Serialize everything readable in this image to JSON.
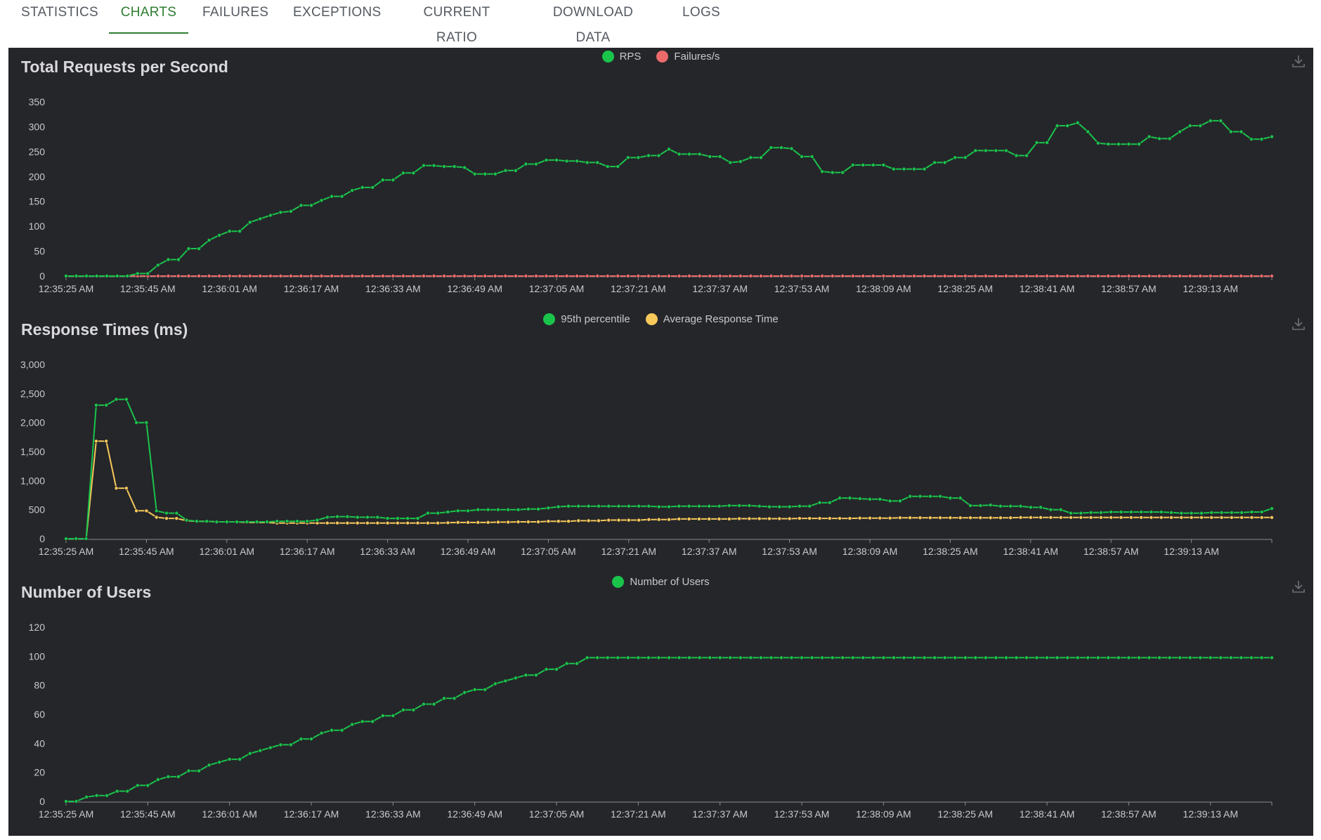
{
  "tabs": [
    {
      "label": "STATISTICS",
      "active": false
    },
    {
      "label": "CHARTS",
      "active": true
    },
    {
      "label": "FAILURES",
      "active": false
    },
    {
      "label": "EXCEPTIONS",
      "active": false
    },
    {
      "label": "CURRENT RATIO",
      "active": false
    },
    {
      "label": "DOWNLOAD DATA",
      "active": false
    },
    {
      "label": "LOGS",
      "active": false
    }
  ],
  "colors": {
    "green": "#19c44b",
    "red": "#ec6a6a",
    "yellow": "#f7c85a",
    "axis": "#8a8a90",
    "text": "#c9c9cc"
  },
  "icons": {
    "download": "download-icon"
  },
  "chart_data": [
    {
      "type": "line",
      "title": "Total Requests per Second",
      "x_tick_labels": [
        "12:35:25 AM",
        "12:35:45 AM",
        "12:36:01 AM",
        "12:36:17 AM",
        "12:36:33 AM",
        "12:36:49 AM",
        "12:37:05 AM",
        "12:37:21 AM",
        "12:37:37 AM",
        "12:37:53 AM",
        "12:38:09 AM",
        "12:38:25 AM",
        "12:38:41 AM",
        "12:38:57 AM",
        "12:39:13 AM"
      ],
      "x_tick_index": [
        0,
        8,
        16,
        24,
        32,
        40,
        48,
        56,
        64,
        72,
        80,
        88,
        96,
        104,
        112
      ],
      "y_ticks": [
        "0",
        "50",
        "100",
        "150",
        "200",
        "250",
        "300",
        "350"
      ],
      "ylim": [
        0,
        350
      ],
      "legend": "top-center",
      "series": [
        {
          "name": "RPS",
          "color": "#19c44b",
          "values": [
            0,
            0,
            0,
            0,
            0,
            0,
            0,
            5,
            5,
            22,
            33,
            33,
            55,
            55,
            72,
            82,
            90,
            90,
            108,
            115,
            122,
            128,
            130,
            142,
            142,
            152,
            160,
            160,
            172,
            178,
            178,
            193,
            193,
            207,
            207,
            222,
            222,
            220,
            220,
            218,
            205,
            205,
            205,
            212,
            212,
            225,
            225,
            233,
            233,
            231,
            231,
            228,
            228,
            220,
            220,
            238,
            238,
            242,
            242,
            255,
            245,
            245,
            245,
            240,
            240,
            228,
            230,
            238,
            238,
            258,
            258,
            256,
            240,
            240,
            210,
            208,
            208,
            223,
            223,
            223,
            223,
            215,
            215,
            215,
            215,
            228,
            228,
            238,
            238,
            252,
            252,
            252,
            252,
            242,
            242,
            268,
            268,
            302,
            302,
            308,
            290,
            267,
            265,
            265,
            265,
            265,
            280,
            276,
            276,
            290,
            302,
            302,
            312,
            312,
            290,
            290,
            275,
            275,
            280
          ]
        },
        {
          "name": "Failures/s",
          "color": "#ec6a6a",
          "values": [
            0,
            0,
            0,
            0,
            0,
            0,
            0,
            0,
            0,
            0,
            0,
            0,
            0,
            0,
            0,
            0,
            0,
            0,
            0,
            0,
            0,
            0,
            0,
            0,
            0,
            0,
            0,
            0,
            0,
            0,
            0,
            0,
            0,
            0,
            0,
            0,
            0,
            0,
            0,
            0,
            0,
            0,
            0,
            0,
            0,
            0,
            0,
            0,
            0,
            0,
            0,
            0,
            0,
            0,
            0,
            0,
            0,
            0,
            0,
            0,
            0,
            0,
            0,
            0,
            0,
            0,
            0,
            0,
            0,
            0,
            0,
            0,
            0,
            0,
            0,
            0,
            0,
            0,
            0,
            0,
            0,
            0,
            0,
            0,
            0,
            0,
            0,
            0,
            0,
            0,
            0,
            0,
            0,
            0,
            0,
            0,
            0,
            0,
            0,
            0,
            0,
            0,
            0,
            0,
            0,
            0,
            0,
            0,
            0,
            0,
            0,
            0,
            0,
            0,
            0,
            0,
            0,
            0,
            0
          ]
        }
      ]
    },
    {
      "type": "line",
      "title": "Response Times (ms)",
      "x_tick_labels": [
        "12:35:25 AM",
        "12:35:45 AM",
        "12:36:01 AM",
        "12:36:17 AM",
        "12:36:33 AM",
        "12:36:49 AM",
        "12:37:05 AM",
        "12:37:21 AM",
        "12:37:37 AM",
        "12:37:53 AM",
        "12:38:09 AM",
        "12:38:25 AM",
        "12:38:41 AM",
        "12:38:57 AM",
        "12:39:13 AM"
      ],
      "x_tick_index": [
        0,
        8,
        16,
        24,
        32,
        40,
        48,
        56,
        64,
        72,
        80,
        88,
        96,
        104,
        112
      ],
      "y_ticks": [
        "0",
        "500",
        "1,000",
        "1,500",
        "2,000",
        "2,500",
        "3,000"
      ],
      "ylim": [
        0,
        3000
      ],
      "legend": "top-center",
      "series": [
        {
          "name": "95th percentile",
          "color": "#19c44b",
          "values": [
            0,
            0,
            0,
            2300,
            2300,
            2400,
            2400,
            2000,
            2000,
            480,
            440,
            440,
            320,
            300,
            300,
            290,
            290,
            290,
            290,
            290,
            290,
            300,
            300,
            300,
            300,
            320,
            370,
            380,
            380,
            370,
            370,
            370,
            350,
            350,
            350,
            350,
            440,
            440,
            460,
            480,
            480,
            500,
            500,
            500,
            500,
            500,
            510,
            510,
            530,
            550,
            560,
            560,
            560,
            560,
            560,
            560,
            560,
            560,
            560,
            550,
            550,
            560,
            560,
            560,
            560,
            560,
            570,
            570,
            570,
            560,
            550,
            550,
            550,
            560,
            560,
            620,
            620,
            700,
            700,
            690,
            680,
            680,
            650,
            650,
            730,
            730,
            730,
            730,
            700,
            700,
            570,
            570,
            580,
            560,
            560,
            560,
            540,
            540,
            500,
            500,
            440,
            440,
            450,
            450,
            460,
            460,
            460,
            460,
            460,
            460,
            450,
            440,
            440,
            440,
            450,
            450,
            450,
            450,
            460,
            460,
            520
          ]
        },
        {
          "name": "Average Response Time",
          "color": "#f7c85a",
          "values": [
            0,
            0,
            0,
            1680,
            1680,
            870,
            870,
            480,
            480,
            370,
            350,
            350,
            310,
            300,
            300,
            290,
            290,
            290,
            280,
            280,
            280,
            270,
            270,
            270,
            270,
            270,
            270,
            270,
            270,
            270,
            270,
            270,
            270,
            270,
            270,
            270,
            270,
            270,
            275,
            280,
            280,
            280,
            280,
            285,
            285,
            290,
            290,
            290,
            300,
            300,
            300,
            310,
            310,
            310,
            320,
            320,
            320,
            320,
            330,
            330,
            330,
            340,
            340,
            340,
            340,
            340,
            340,
            345,
            345,
            345,
            345,
            345,
            345,
            350,
            350,
            350,
            350,
            350,
            350,
            355,
            355,
            355,
            355,
            360,
            360,
            360,
            360,
            360,
            360,
            360,
            360,
            360,
            360,
            360,
            360,
            365,
            365,
            365,
            365,
            365,
            365,
            365,
            365,
            365,
            365,
            365,
            365,
            365,
            365,
            365,
            365,
            365,
            365,
            365,
            365,
            365,
            365,
            365,
            365,
            365,
            365
          ]
        }
      ]
    },
    {
      "type": "line",
      "title": "Number of Users",
      "x_tick_labels": [
        "12:35:25 AM",
        "12:35:45 AM",
        "12:36:01 AM",
        "12:36:17 AM",
        "12:36:33 AM",
        "12:36:49 AM",
        "12:37:05 AM",
        "12:37:21 AM",
        "12:37:37 AM",
        "12:37:53 AM",
        "12:38:09 AM",
        "12:38:25 AM",
        "12:38:41 AM",
        "12:38:57 AM",
        "12:39:13 AM"
      ],
      "x_tick_index": [
        0,
        8,
        16,
        24,
        32,
        40,
        48,
        56,
        64,
        72,
        80,
        88,
        96,
        104,
        112
      ],
      "y_ticks": [
        "0",
        "20",
        "40",
        "60",
        "80",
        "100",
        "120"
      ],
      "ylim": [
        0,
        120
      ],
      "legend": "top-center",
      "series": [
        {
          "name": "Number of Users",
          "color": "#19c44b",
          "values": [
            0,
            0,
            3,
            4,
            4,
            7,
            7,
            11,
            11,
            15,
            17,
            17,
            21,
            21,
            25,
            27,
            29,
            29,
            33,
            35,
            37,
            39,
            39,
            43,
            43,
            47,
            49,
            49,
            53,
            55,
            55,
            59,
            59,
            63,
            63,
            67,
            67,
            71,
            71,
            75,
            77,
            77,
            81,
            83,
            85,
            87,
            87,
            91,
            91,
            95,
            95,
            99,
            99,
            99,
            99,
            99,
            99,
            99,
            99,
            99,
            99,
            99,
            99,
            99,
            99,
            99,
            99,
            99,
            99,
            99,
            99,
            99,
            99,
            99,
            99,
            99,
            99,
            99,
            99,
            99,
            99,
            99,
            99,
            99,
            99,
            99,
            99,
            99,
            99,
            99,
            99,
            99,
            99,
            99,
            99,
            99,
            99,
            99,
            99,
            99,
            99,
            99,
            99,
            99,
            99,
            99,
            99,
            99,
            99,
            99,
            99,
            99,
            99,
            99,
            99,
            99,
            99,
            99,
            99
          ]
        }
      ]
    }
  ]
}
